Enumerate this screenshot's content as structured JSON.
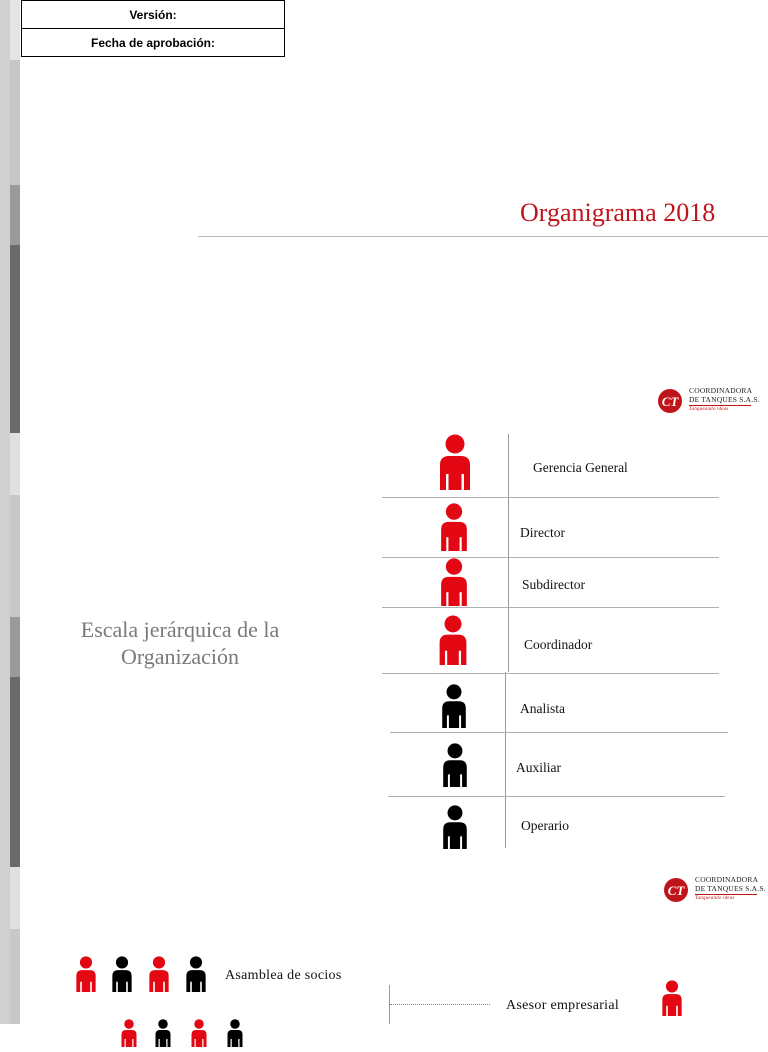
{
  "header": {
    "version_label": "Versión:",
    "approval_date_label": "Fecha de aprobación:"
  },
  "page_title": "Organigrama 2018",
  "logo": {
    "line1": "COORDINADORA",
    "line2": "DE TANQUES S.A.S.",
    "tagline": "Tanqueando ideas"
  },
  "section_title_line1": "Escala jerárquica de la",
  "section_title_line2": "Organización",
  "hierarchy": [
    {
      "label": "Gerencia General",
      "color": "#e30613"
    },
    {
      "label": "Director",
      "color": "#e30613"
    },
    {
      "label": "Subdirector",
      "color": "#e30613"
    },
    {
      "label": "Coordinador",
      "color": "#e30613"
    },
    {
      "label": "Analista",
      "color": "#000000"
    },
    {
      "label": "Auxiliar",
      "color": "#000000"
    },
    {
      "label": "Operario",
      "color": "#000000"
    }
  ],
  "legend": {
    "assembly_label": "Asamblea de socios",
    "advisor_label": "Asesor empresarial"
  },
  "colors": {
    "accent": "#c0141b",
    "red_figure": "#e30613",
    "black_figure": "#000000"
  }
}
